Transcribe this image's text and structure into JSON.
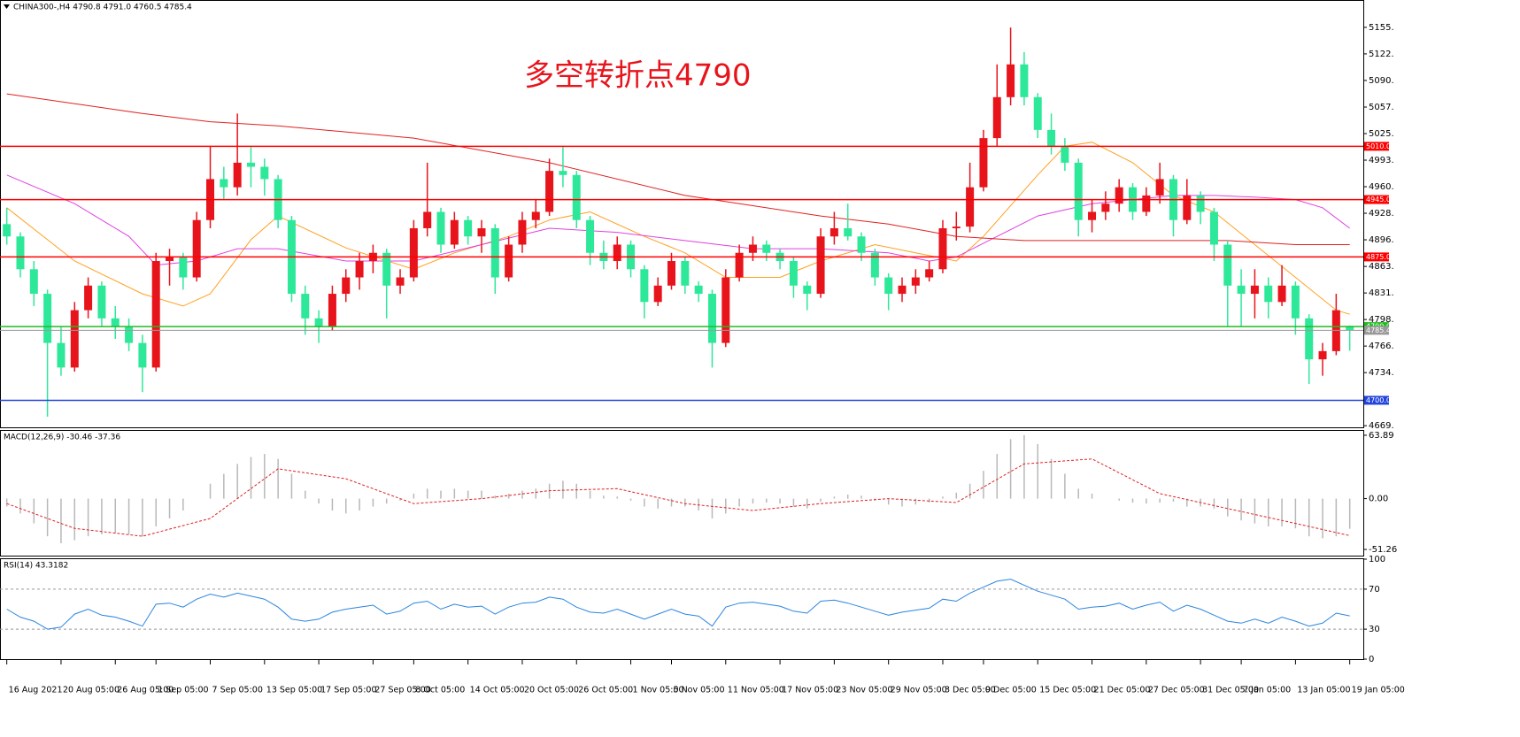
{
  "chart_data": [
    {
      "type": "candlestick",
      "header": "CHINA300-,H4  4790.8 4791.0 4760.5 4785.4",
      "annotation": "多空转折点4790",
      "bull_color": "#e8141c",
      "bear_color": "#2ee89a",
      "xlim": [
        -0.5,
        100
      ],
      "ylim": [
        4667,
        5187.5
      ],
      "yticks": [
        {
          "value": 5155.2,
          "label": "5155."
        },
        {
          "value": 5122.8,
          "label": "5122."
        },
        {
          "value": 5090.4,
          "label": "5090."
        },
        {
          "value": 5057.9,
          "label": "5057."
        },
        {
          "value": 5025.5,
          "label": "5025."
        },
        {
          "value": 4993.1,
          "label": "4993."
        },
        {
          "value": 4960.7,
          "label": "4960."
        },
        {
          "value": 4928.3,
          "label": "4928."
        },
        {
          "value": 4895.9,
          "label": "4896."
        },
        {
          "value": 4863.4,
          "label": "4863."
        },
        {
          "value": 4831.0,
          "label": "4831."
        },
        {
          "value": 4798.6,
          "label": "4798."
        },
        {
          "value": 4766.2,
          "label": "4766."
        },
        {
          "value": 4733.8,
          "label": "4734."
        },
        {
          "value": 4669.0,
          "label": "4669."
        }
      ],
      "xticks": [
        {
          "value": 0,
          "label": "16 Aug 2021"
        },
        {
          "value": 4,
          "label": "20 Aug 05:00"
        },
        {
          "value": 8,
          "label": "26 Aug 05:00"
        },
        {
          "value": 11,
          "label": "1 Sep 05:00"
        },
        {
          "value": 15,
          "label": "7 Sep 05:00"
        },
        {
          "value": 19,
          "label": "13 Sep 05:00"
        },
        {
          "value": 23,
          "label": "17 Sep 05:00"
        },
        {
          "value": 27,
          "label": "27 Sep 05:00"
        },
        {
          "value": 30,
          "label": "8 Oct 05:00"
        },
        {
          "value": 34,
          "label": "14 Oct 05:00"
        },
        {
          "value": 38,
          "label": "20 Oct 05:00"
        },
        {
          "value": 42,
          "label": "26 Oct 05:00"
        },
        {
          "value": 46,
          "label": "1 Nov 05:00"
        },
        {
          "value": 49,
          "label": "5 Nov 05:00"
        },
        {
          "value": 53,
          "label": "11 Nov 05:00"
        },
        {
          "value": 57,
          "label": "17 Nov 05:00"
        },
        {
          "value": 61,
          "label": "23 Nov 05:00"
        },
        {
          "value": 65,
          "label": "29 Nov 05:00"
        },
        {
          "value": 69,
          "label": "3 Dec 05:00"
        },
        {
          "value": 72,
          "label": "9 Dec 05:00"
        },
        {
          "value": 76,
          "label": "15 Dec 05:00"
        },
        {
          "value": 80,
          "label": "21 Dec 05:00"
        },
        {
          "value": 84,
          "label": "27 Dec 05:00"
        },
        {
          "value": 88,
          "label": "31 Dec 05:00"
        },
        {
          "value": 91,
          "label": "7 Jan 05:00"
        },
        {
          "value": 95,
          "label": "13 Jan 05:00"
        },
        {
          "value": 99,
          "label": "19 Jan 05:00"
        }
      ],
      "levels": [
        {
          "value": 5010,
          "label": "5010.0",
          "color": "#ff0000"
        },
        {
          "value": 4945,
          "label": "4945.0",
          "color": "#ff0000"
        },
        {
          "value": 4875,
          "label": "4875.0",
          "color": "#ff0000"
        },
        {
          "value": 4790,
          "label": "4790.0",
          "color": "#22bb22"
        },
        {
          "value": 4700,
          "label": "4700.0",
          "color": "#2244dd"
        }
      ],
      "last_price": {
        "value": 4785.4,
        "color": "#999999"
      },
      "lines": [
        {
          "color": "#ffa020",
          "x": [
            0,
            5,
            10,
            13,
            15,
            18,
            20,
            25,
            30,
            33,
            37,
            40,
            43,
            47,
            50,
            53,
            57,
            60,
            64,
            67,
            70,
            72,
            76,
            78,
            80,
            83,
            86,
            89,
            92,
            95,
            98,
            99
          ],
          "values": [
            4935,
            4870,
            4830,
            4815,
            4830,
            4896,
            4925,
            4886,
            4860,
            4880,
            4900,
            4920,
            4930,
            4900,
            4880,
            4850,
            4850,
            4870,
            4890,
            4880,
            4870,
            4900,
            4975,
            5010,
            5015,
            4990,
            4950,
            4930,
            4890,
            4850,
            4810,
            4805
          ]
        },
        {
          "color": "#e040e0",
          "x": [
            0,
            5,
            9,
            11,
            14,
            17,
            20,
            25,
            30,
            35,
            40,
            45,
            50,
            55,
            60,
            65,
            68,
            70,
            73,
            76,
            80,
            83,
            86,
            89,
            92,
            95,
            97,
            99
          ],
          "values": [
            4975,
            4940,
            4900,
            4865,
            4870,
            4885,
            4885,
            4870,
            4870,
            4890,
            4910,
            4905,
            4895,
            4885,
            4885,
            4880,
            4870,
            4875,
            4900,
            4925,
            4940,
            4945,
            4950,
            4950,
            4948,
            4945,
            4935,
            4910
          ]
        },
        {
          "color": "#e02020",
          "x": [
            0,
            10,
            15,
            20,
            30,
            40,
            50,
            60,
            65,
            70,
            75,
            80,
            85,
            90,
            95,
            99
          ],
          "values": [
            5074,
            5050,
            5040,
            5035,
            5020,
            4990,
            4950,
            4925,
            4915,
            4900,
            4895,
            4895,
            4895,
            4895,
            4890,
            4890
          ]
        }
      ],
      "ohlc": [
        [
          4915,
          4935,
          4890,
          4900
        ],
        [
          4900,
          4905,
          4850,
          4860
        ],
        [
          4860,
          4870,
          4815,
          4830
        ],
        [
          4830,
          4835,
          4680,
          4770
        ],
        [
          4770,
          4790,
          4730,
          4740
        ],
        [
          4740,
          4820,
          4735,
          4810
        ],
        [
          4810,
          4850,
          4800,
          4840
        ],
        [
          4840,
          4845,
          4790,
          4800
        ],
        [
          4800,
          4815,
          4775,
          4790
        ],
        [
          4790,
          4800,
          4760,
          4770
        ],
        [
          4770,
          4780,
          4710,
          4740
        ],
        [
          4740,
          4880,
          4735,
          4870
        ],
        [
          4870,
          4885,
          4840,
          4875
        ],
        [
          4875,
          4880,
          4835,
          4850
        ],
        [
          4850,
          4930,
          4845,
          4920
        ],
        [
          4920,
          5010,
          4910,
          4970
        ],
        [
          4970,
          4985,
          4945,
          4960
        ],
        [
          4960,
          5050,
          4950,
          4990
        ],
        [
          4990,
          5010,
          4960,
          4985
        ],
        [
          4985,
          4995,
          4950,
          4970
        ],
        [
          4970,
          4975,
          4910,
          4920
        ],
        [
          4920,
          4925,
          4820,
          4830
        ],
        [
          4830,
          4840,
          4780,
          4800
        ],
        [
          4800,
          4810,
          4770,
          4790
        ],
        [
          4790,
          4840,
          4785,
          4830
        ],
        [
          4830,
          4860,
          4820,
          4850
        ],
        [
          4850,
          4880,
          4835,
          4870
        ],
        [
          4870,
          4890,
          4855,
          4880
        ],
        [
          4880,
          4885,
          4800,
          4840
        ],
        [
          4840,
          4860,
          4830,
          4850
        ],
        [
          4850,
          4920,
          4845,
          4910
        ],
        [
          4910,
          4990,
          4900,
          4930
        ],
        [
          4930,
          4935,
          4880,
          4890
        ],
        [
          4890,
          4930,
          4885,
          4920
        ],
        [
          4920,
          4925,
          4890,
          4900
        ],
        [
          4900,
          4920,
          4880,
          4910
        ],
        [
          4910,
          4915,
          4830,
          4850
        ],
        [
          4850,
          4900,
          4845,
          4890
        ],
        [
          4890,
          4930,
          4880,
          4920
        ],
        [
          4920,
          4945,
          4910,
          4930
        ],
        [
          4930,
          4995,
          4925,
          4980
        ],
        [
          4980,
          5010,
          4960,
          4975
        ],
        [
          4975,
          4980,
          4910,
          4920
        ],
        [
          4920,
          4925,
          4865,
          4880
        ],
        [
          4880,
          4895,
          4860,
          4870
        ],
        [
          4870,
          4900,
          4860,
          4890
        ],
        [
          4890,
          4895,
          4850,
          4860
        ],
        [
          4860,
          4865,
          4800,
          4820
        ],
        [
          4820,
          4850,
          4815,
          4840
        ],
        [
          4840,
          4880,
          4835,
          4870
        ],
        [
          4870,
          4875,
          4830,
          4840
        ],
        [
          4840,
          4845,
          4820,
          4830
        ],
        [
          4830,
          4835,
          4740,
          4770
        ],
        [
          4770,
          4860,
          4765,
          4850
        ],
        [
          4850,
          4890,
          4845,
          4880
        ],
        [
          4880,
          4900,
          4870,
          4890
        ],
        [
          4890,
          4895,
          4870,
          4880
        ],
        [
          4880,
          4885,
          4860,
          4870
        ],
        [
          4870,
          4875,
          4825,
          4840
        ],
        [
          4840,
          4845,
          4810,
          4830
        ],
        [
          4830,
          4910,
          4825,
          4900
        ],
        [
          4900,
          4930,
          4890,
          4910
        ],
        [
          4910,
          4940,
          4895,
          4900
        ],
        [
          4900,
          4905,
          4870,
          4880
        ],
        [
          4880,
          4885,
          4840,
          4850
        ],
        [
          4850,
          4855,
          4810,
          4830
        ],
        [
          4830,
          4850,
          4820,
          4840
        ],
        [
          4840,
          4860,
          4830,
          4850
        ],
        [
          4850,
          4870,
          4845,
          4860
        ],
        [
          4860,
          4920,
          4855,
          4910
        ],
        [
          4910,
          4930,
          4895,
          4912
        ],
        [
          4912,
          4990,
          4905,
          4960
        ],
        [
          4960,
          5030,
          4955,
          5020
        ],
        [
          5020,
          5110,
          5010,
          5070
        ],
        [
          5070,
          5155,
          5060,
          5110
        ],
        [
          5110,
          5125,
          5060,
          5070
        ],
        [
          5070,
          5075,
          5020,
          5030
        ],
        [
          5030,
          5050,
          5000,
          5010
        ],
        [
          5010,
          5020,
          4980,
          4990
        ],
        [
          4990,
          4995,
          4900,
          4920
        ],
        [
          4920,
          4945,
          4905,
          4930
        ],
        [
          4930,
          4955,
          4920,
          4940
        ],
        [
          4940,
          4970,
          4930,
          4960
        ],
        [
          4960,
          4965,
          4920,
          4930
        ],
        [
          4930,
          4960,
          4925,
          4950
        ],
        [
          4950,
          4990,
          4940,
          4970
        ],
        [
          4970,
          4975,
          4900,
          4920
        ],
        [
          4920,
          4970,
          4915,
          4950
        ],
        [
          4950,
          4955,
          4915,
          4930
        ],
        [
          4930,
          4935,
          4870,
          4890
        ],
        [
          4890,
          4895,
          4790,
          4840
        ],
        [
          4840,
          4860,
          4790,
          4830
        ],
        [
          4830,
          4860,
          4800,
          4840
        ],
        [
          4840,
          4850,
          4800,
          4820
        ],
        [
          4820,
          4865,
          4815,
          4840
        ],
        [
          4840,
          4845,
          4780,
          4800
        ],
        [
          4800,
          4805,
          4720,
          4750
        ],
        [
          4750,
          4770,
          4730,
          4760
        ],
        [
          4760,
          4830,
          4755,
          4810
        ],
        [
          4790.8,
          4791.0,
          4760.5,
          4785.4
        ]
      ]
    },
    {
      "type": "macd",
      "title": "MACD(12,26,9) -30.46 -37.36",
      "xlim": [
        -0.5,
        100
      ],
      "ylim": [
        -57.5,
        68.3
      ],
      "yticks": [
        63.89,
        {
          "value": 0,
          "label": "0.00"
        },
        -51.26
      ],
      "bar_color": "#b8b8b8",
      "signal_color": "#e02020",
      "histogram": [
        -8,
        -15,
        -25,
        -38,
        -45,
        -42,
        -38,
        -36,
        -35,
        -36,
        -38,
        -28,
        -20,
        -12,
        0,
        15,
        25,
        35,
        42,
        45,
        40,
        25,
        8,
        -5,
        -12,
        -15,
        -12,
        -8,
        -5,
        -2,
        5,
        10,
        8,
        10,
        8,
        8,
        3,
        5,
        8,
        10,
        15,
        18,
        15,
        8,
        3,
        2,
        -2,
        -8,
        -10,
        -8,
        -8,
        -12,
        -20,
        -15,
        -8,
        -5,
        -4,
        -5,
        -8,
        -10,
        -3,
        2,
        4,
        3,
        -2,
        -6,
        -8,
        -6,
        -4,
        2,
        6,
        15,
        28,
        45,
        60,
        64,
        55,
        40,
        25,
        10,
        5,
        0,
        -2,
        -4,
        -5,
        -4,
        -3,
        -8,
        -8,
        -10,
        -18,
        -22,
        -25,
        -28,
        -28,
        -30,
        -38,
        -40,
        -38,
        -30.46
      ],
      "signal": {
        "x": [
          0,
          5,
          10,
          15,
          20,
          25,
          30,
          35,
          40,
          45,
          50,
          55,
          60,
          65,
          70,
          75,
          80,
          85,
          90,
          95,
          99
        ],
        "values": [
          -5,
          -30,
          -38,
          -20,
          30,
          20,
          -5,
          0,
          8,
          10,
          -5,
          -12,
          -5,
          0,
          -4,
          35,
          40,
          5,
          -10,
          -25,
          -37.36
        ]
      }
    },
    {
      "type": "rsi",
      "title": "RSI(14) 43.3182",
      "xlim": [
        -0.5,
        100
      ],
      "ylim": [
        0,
        100
      ],
      "yticks": [
        0,
        30,
        70,
        100
      ],
      "guides": [
        30,
        70
      ],
      "color": "#2a85e0",
      "values": [
        50,
        42,
        38,
        30,
        32,
        45,
        50,
        44,
        42,
        38,
        33,
        55,
        56,
        52,
        60,
        65,
        62,
        66,
        63,
        60,
        52,
        40,
        38,
        40,
        47,
        50,
        52,
        54,
        45,
        48,
        56,
        58,
        50,
        55,
        52,
        53,
        45,
        52,
        56,
        57,
        62,
        60,
        52,
        47,
        46,
        50,
        45,
        40,
        45,
        50,
        45,
        43,
        33,
        52,
        56,
        57,
        55,
        53,
        48,
        46,
        58,
        59,
        56,
        52,
        48,
        44,
        47,
        49,
        51,
        60,
        58,
        66,
        72,
        78,
        80,
        74,
        68,
        64,
        60,
        50,
        52,
        53,
        56,
        50,
        54,
        57,
        48,
        54,
        50,
        44,
        38,
        36,
        40,
        36,
        42,
        38,
        33,
        36,
        46,
        43.3182
      ]
    }
  ]
}
